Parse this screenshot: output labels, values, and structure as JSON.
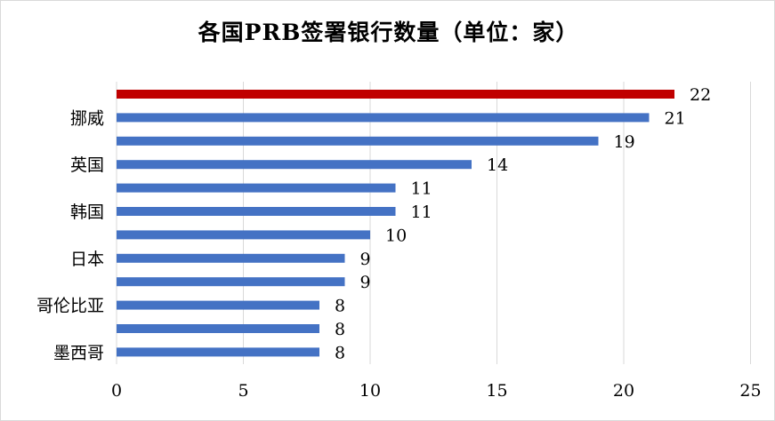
{
  "title": "各国PRB签署银行数量（单位：家）",
  "chart_data": {
    "type": "bar",
    "orientation": "horizontal",
    "title": "各国PRB签署银行数量（单位：家）",
    "categories": [
      "",
      "挪威",
      "",
      "英国",
      "",
      "韩国",
      "",
      "日本",
      "",
      "哥伦比亚",
      "",
      "墨西哥"
    ],
    "values": [
      22,
      21,
      19,
      14,
      11,
      11,
      10,
      9,
      9,
      8,
      8,
      8
    ],
    "x_ticks": [
      "0",
      "5",
      "10",
      "15",
      "20",
      "25"
    ],
    "xlim": [
      0,
      25
    ],
    "grid": true,
    "legend": "none",
    "colors": {
      "highlight": "#c00000",
      "default": "#4472c4",
      "grid": "#d9d9d9"
    }
  }
}
